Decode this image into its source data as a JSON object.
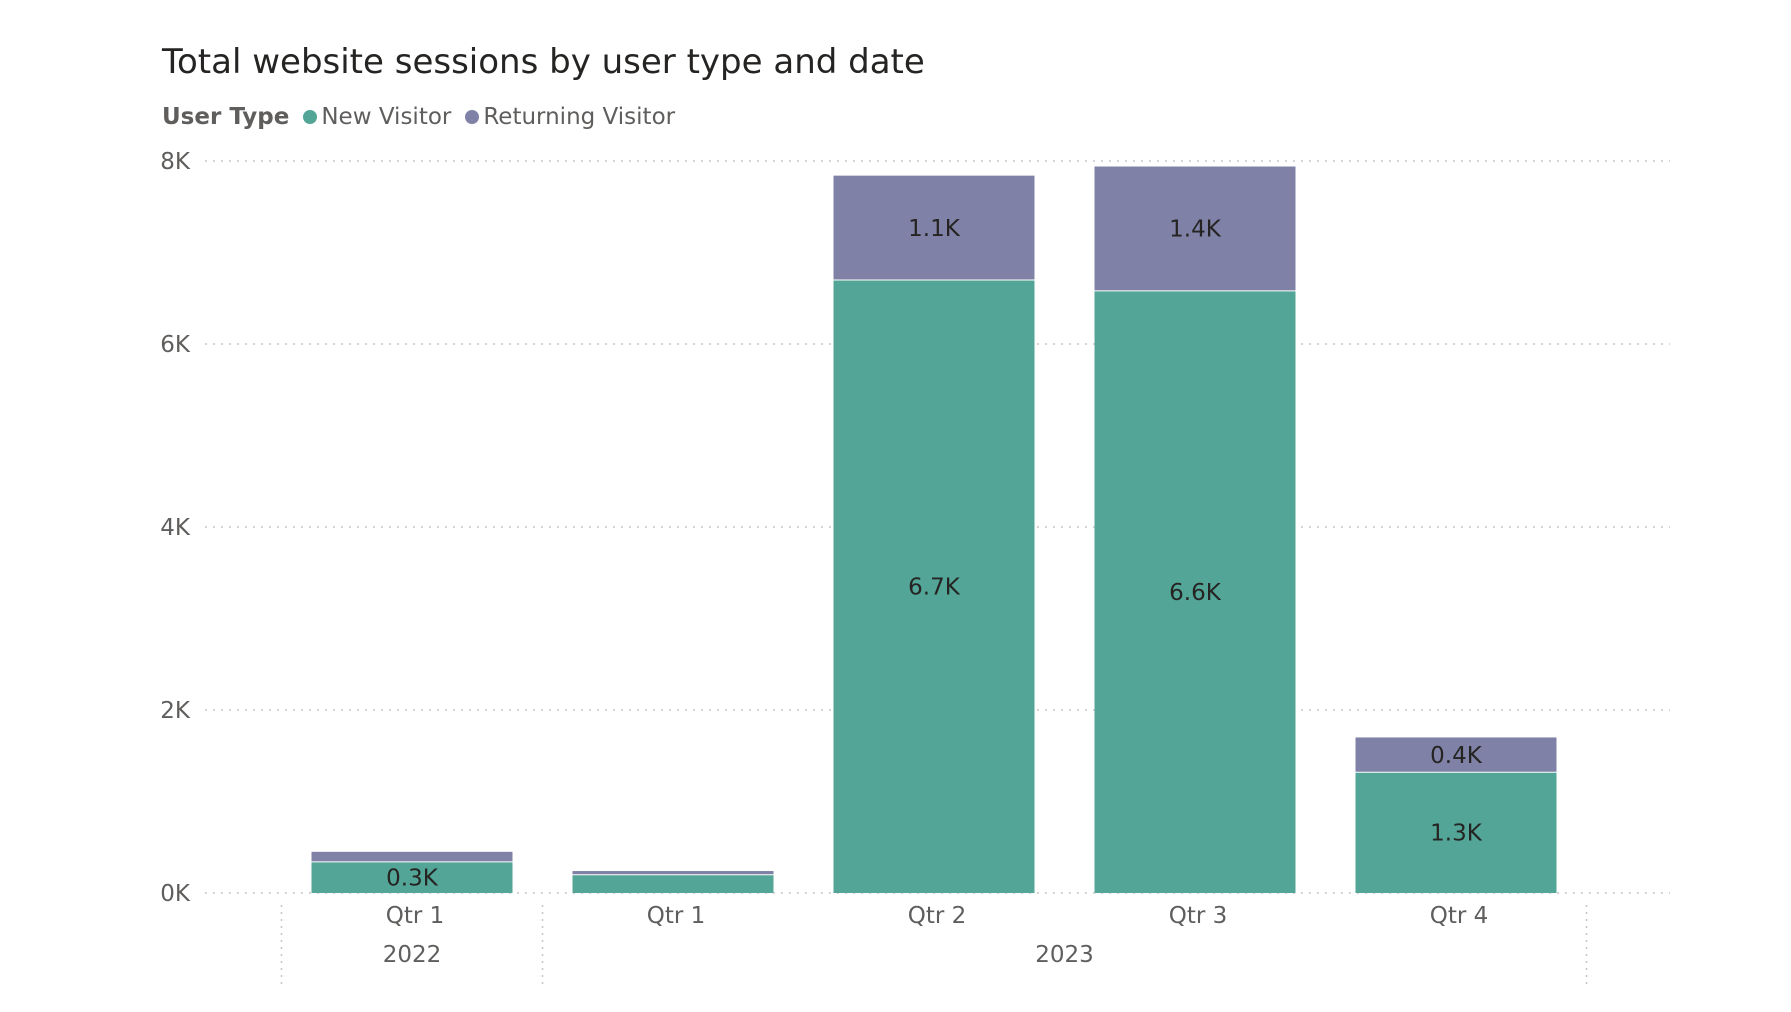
{
  "chart_data": {
    "type": "bar",
    "stacked": true,
    "title": "Total website sessions by user type and date",
    "legend": {
      "title": "User Type",
      "placement": "top-left",
      "entries": [
        "New Visitor",
        "Returning Visitor"
      ]
    },
    "categories": [
      "Qtr 1",
      "Qtr 1",
      "Qtr 2",
      "Qtr 3",
      "Qtr 4"
    ],
    "category_groups": [
      {
        "label": "2022",
        "count": 1
      },
      {
        "label": "2023",
        "count": 4
      }
    ],
    "series": [
      {
        "name": "New Visitor",
        "color": "#53a697",
        "values": [
          340,
          200,
          6700,
          6580,
          1320
        ],
        "labels": [
          "0.3K",
          "",
          "6.7K",
          "6.6K",
          "1.3K"
        ]
      },
      {
        "name": "Returning Visitor",
        "color": "#7f82a6",
        "values": [
          110,
          40,
          1140,
          1360,
          380
        ],
        "labels": [
          "",
          "",
          "1.1K",
          "1.4K",
          "0.4K"
        ]
      }
    ],
    "ylim": [
      0,
      8000
    ],
    "yticks": [
      0,
      2000,
      4000,
      6000,
      8000
    ],
    "ytick_labels": [
      "0K",
      "2K",
      "4K",
      "6K",
      "8K"
    ],
    "grid": true,
    "xlabel": "",
    "ylabel": ""
  }
}
